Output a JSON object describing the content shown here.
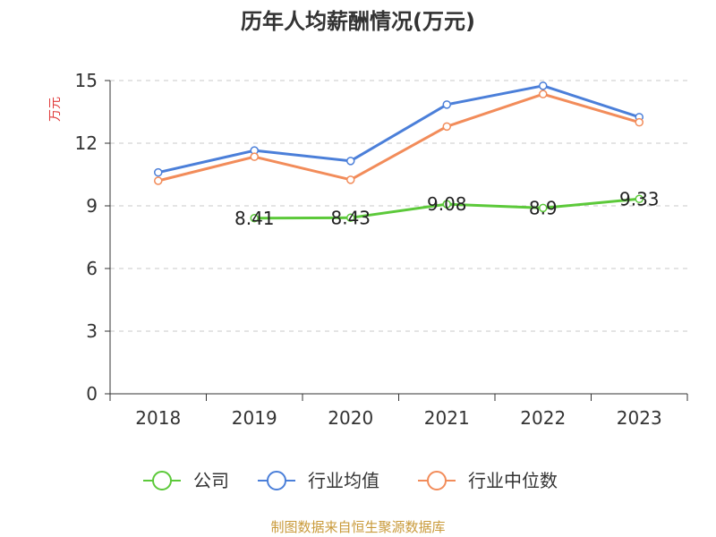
{
  "chart_data": {
    "type": "line",
    "title": "历年人均薪酬情况(万元)",
    "ylabel": "万元",
    "xlabel": "",
    "categories": [
      "2018",
      "2019",
      "2020",
      "2021",
      "2022",
      "2023"
    ],
    "ylim": [
      0,
      15
    ],
    "yticks": [
      0,
      3,
      6,
      9,
      12,
      15
    ],
    "grid": true,
    "legend_position": "bottom",
    "series": [
      {
        "name": "公司",
        "color": "#5cc93a",
        "values": [
          null,
          8.41,
          8.43,
          9.08,
          8.9,
          9.33
        ],
        "labels": [
          "",
          "8.41",
          "8.43",
          "9.08",
          "8.9",
          "9.33"
        ]
      },
      {
        "name": "行业均值",
        "color": "#4b7fd9",
        "values": [
          10.6,
          11.65,
          11.15,
          13.85,
          14.75,
          13.25
        ]
      },
      {
        "name": "行业中位数",
        "color": "#f28c5a",
        "values": [
          10.2,
          11.35,
          10.25,
          12.8,
          14.35,
          13.0
        ]
      }
    ],
    "source": "制图数据来自恒生聚源数据库"
  }
}
